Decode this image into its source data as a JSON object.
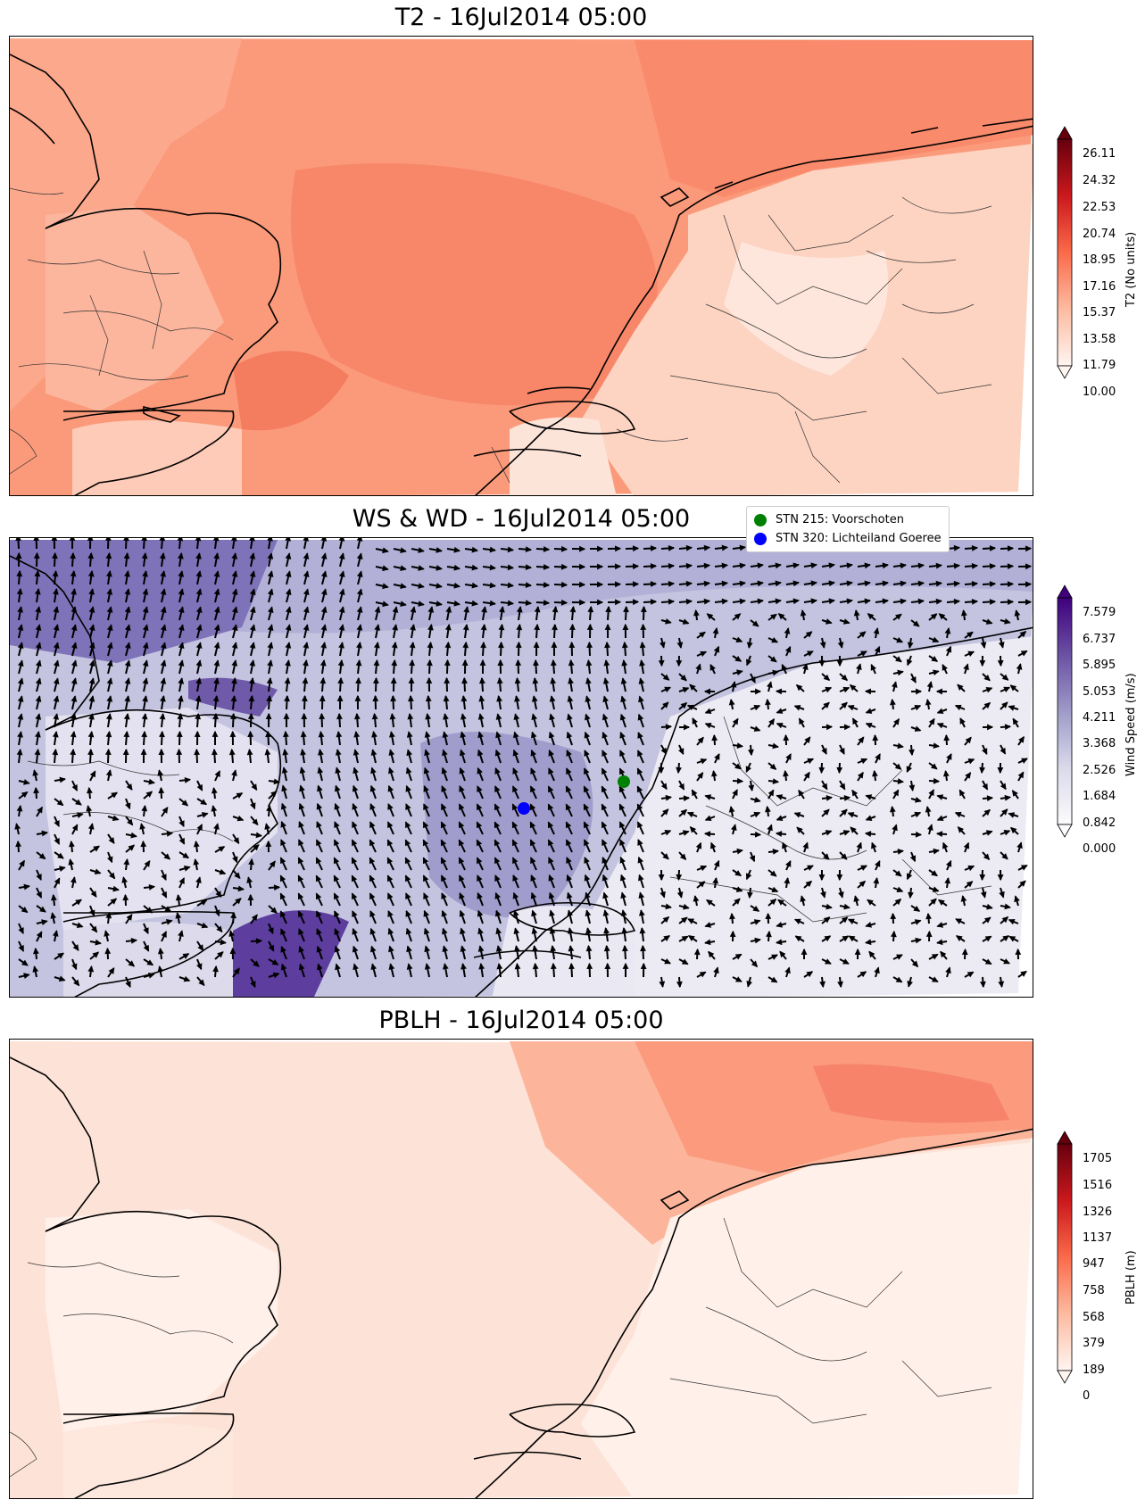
{
  "panels": [
    {
      "id": "t2",
      "title": "T2 - 16Jul2014 05:00",
      "colorbar_label": "T2 (No units)",
      "colorbar_ticks": [
        "26.11",
        "24.32",
        "22.53",
        "20.74",
        "18.95",
        "17.16",
        "15.37",
        "13.58",
        "11.79",
        "10.00"
      ],
      "colormap": [
        "#fff5f0",
        "#fee0d2",
        "#fcbba1",
        "#fc9272",
        "#fb6a4a",
        "#ef3b2c",
        "#cb181d",
        "#a50f15",
        "#67000d"
      ]
    },
    {
      "id": "ws",
      "title": "WS & WD - 16Jul2014 05:00",
      "colorbar_label": "Wind Speed (m/s)",
      "colorbar_ticks": [
        "7.579",
        "6.737",
        "5.895",
        "5.053",
        "4.211",
        "3.368",
        "2.526",
        "1.684",
        "0.842",
        "0.000"
      ],
      "colormap": [
        "#fcfbfd",
        "#efedf5",
        "#dadaeb",
        "#bcbddc",
        "#9e9ac8",
        "#807dba",
        "#6a51a3",
        "#54278f",
        "#3f007d"
      ],
      "legend": [
        {
          "label": "STN 215: Voorschoten",
          "color": "#008000"
        },
        {
          "label": "STN 320: Lichteiland Goeree",
          "color": "#0000ff"
        }
      ]
    },
    {
      "id": "pblh",
      "title": "PBLH - 16Jul2014 05:00",
      "colorbar_label": "PBLH (m)",
      "colorbar_ticks": [
        "1705",
        "1516",
        "1326",
        "1137",
        "947",
        "758",
        "568",
        "379",
        "189",
        "0"
      ],
      "colormap": [
        "#fff5f0",
        "#fee0d2",
        "#fcbba1",
        "#fc9272",
        "#fb6a4a",
        "#ef3b2c",
        "#cb181d",
        "#a50f15",
        "#67000d"
      ]
    }
  ]
}
